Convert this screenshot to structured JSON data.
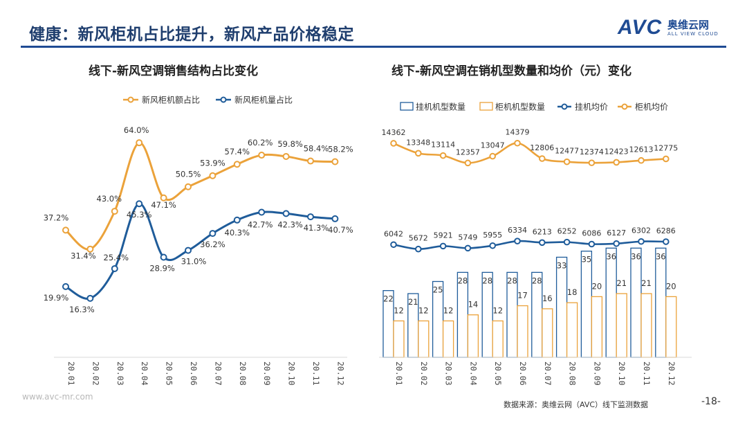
{
  "header": {
    "title": "健康：新风柜机占比提升，新风产品价格稳定",
    "logo_text": "AVC",
    "logo_cn": "奥维云网",
    "logo_en": "ALL VIEW CLOUD"
  },
  "colors": {
    "orange": "#eba23a",
    "blue": "#1f5c9a",
    "navy": "#1f3e6e"
  },
  "chart_data": [
    {
      "type": "line",
      "title": "线下-新风空调销售结构占比变化",
      "categories": [
        "20.01",
        "20.02",
        "20.03",
        "20.04",
        "20.05",
        "20.06",
        "20.07",
        "20.08",
        "20.09",
        "20.10",
        "20.11",
        "20.12"
      ],
      "series": [
        {
          "name": "新风柜机额占比",
          "color": "#eba23a",
          "values": [
            37.2,
            31.4,
            43.0,
            64.0,
            47.1,
            50.5,
            53.9,
            57.4,
            60.2,
            59.8,
            58.4,
            58.2
          ],
          "labels": [
            "37.2%",
            "31.4%",
            "43.0%",
            "64.0%",
            "47.1%",
            "50.5%",
            "53.9%",
            "57.4%",
            "60.2%",
            "59.8%",
            "58.4%",
            "58.2%"
          ]
        },
        {
          "name": "新风柜机量占比",
          "color": "#1f5c9a",
          "values": [
            19.9,
            16.3,
            25.4,
            45.3,
            28.9,
            31.0,
            36.2,
            40.3,
            42.7,
            42.3,
            41.3,
            40.7
          ],
          "labels": [
            "19.9%",
            "16.3%",
            "25.4%",
            "45.3%",
            "28.9%",
            "31.0%",
            "36.2%",
            "40.3%",
            "42.7%",
            "42.3%",
            "41.3%",
            "40.7%"
          ]
        }
      ],
      "legend_position": "top"
    },
    {
      "type": "bar+line",
      "title": "线下-新风空调在销机型数量和均价（元）变化",
      "categories": [
        "20.01",
        "20.02",
        "20.03",
        "20.04",
        "20.05",
        "20.06",
        "20.07",
        "20.08",
        "20.09",
        "20.10",
        "20.11",
        "20.12"
      ],
      "bar_series": [
        {
          "name": "挂机机型数量",
          "color": "#1f5c9a",
          "values": [
            22,
            21,
            25,
            28,
            28,
            28,
            28,
            33,
            35,
            36,
            36,
            36
          ],
          "labels": [
            "22",
            "21",
            "25",
            "28",
            "28",
            "28",
            "28",
            "33",
            "35",
            "36",
            "36",
            "36"
          ]
        },
        {
          "name": "柜机机型数量",
          "color": "#eba23a",
          "values": [
            12,
            12,
            12,
            14,
            12,
            17,
            16,
            18,
            20,
            21,
            21,
            20
          ],
          "labels": [
            "12",
            "12",
            "12",
            "14",
            "12",
            "17",
            "16",
            "18",
            "20",
            "21",
            "21",
            "20"
          ]
        }
      ],
      "line_series": [
        {
          "name": "挂机均价",
          "color": "#1f5c9a",
          "values": [
            6042,
            5672,
            5921,
            5749,
            5955,
            6334,
            6213,
            6252,
            6086,
            6127,
            6302,
            6286
          ],
          "labels": [
            "6042",
            "5672",
            "5921",
            "5749",
            "5955",
            "6334",
            "6213",
            "6252",
            "6086",
            "6127",
            "6302",
            "6286"
          ]
        },
        {
          "name": "柜机均价",
          "color": "#eba23a",
          "values": [
            14362,
            13348,
            13114,
            12357,
            13047,
            14379,
            12806,
            12477,
            12374,
            12423,
            12613,
            12775
          ],
          "labels": [
            "14362",
            "13348",
            "13114",
            "12357",
            "13047",
            "14379",
            "12806",
            "12477",
            "12374",
            "12423",
            "12613",
            "12775"
          ]
        }
      ],
      "legend_position": "top"
    }
  ],
  "footer": {
    "url": "www.avc-mr.com",
    "source": "数据来源：奥维云网（AVC）线下监测数据",
    "page": "-18-"
  }
}
